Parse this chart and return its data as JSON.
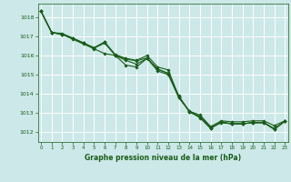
{
  "xlabel": "Graphe pression niveau de la mer (hPa)",
  "bg_color": "#cce8e8",
  "grid_color": "#ffffff",
  "line_color": "#1a5c1a",
  "marker": "D",
  "markersize": 1.8,
  "linewidth": 0.8,
  "ylim": [
    1011.5,
    1018.7
  ],
  "xlim": [
    -0.3,
    23.3
  ],
  "yticks": [
    1012,
    1013,
    1014,
    1015,
    1016,
    1017,
    1018
  ],
  "xticks": [
    0,
    1,
    2,
    3,
    4,
    5,
    6,
    7,
    8,
    9,
    10,
    11,
    12,
    13,
    14,
    15,
    16,
    17,
    18,
    19,
    20,
    21,
    22,
    23
  ],
  "series": [
    [
      1018.3,
      1017.2,
      1017.15,
      1016.9,
      1016.65,
      1016.4,
      1016.7,
      1016.05,
      1015.85,
      1015.75,
      1016.0,
      1015.4,
      1015.25,
      1013.85,
      1013.1,
      1012.9,
      1012.3,
      1012.6,
      1012.55,
      1012.55,
      1012.6,
      1012.6,
      1012.35,
      1012.6
    ],
    [
      1018.3,
      1017.2,
      1017.1,
      1016.85,
      1016.6,
      1016.35,
      1016.1,
      1016.0,
      1015.75,
      1015.55,
      1015.85,
      1015.3,
      1015.05,
      1013.9,
      1013.05,
      1012.8,
      1012.25,
      1012.5,
      1012.45,
      1012.45,
      1012.5,
      1012.5,
      1012.2,
      1012.58
    ],
    [
      1018.3,
      1017.2,
      1017.1,
      1016.9,
      1016.65,
      1016.4,
      1016.7,
      1016.0,
      1015.5,
      1015.4,
      1015.85,
      1015.2,
      1015.0,
      1013.8,
      1013.1,
      1012.75,
      1012.2,
      1012.55,
      1012.45,
      1012.45,
      1012.5,
      1012.5,
      1012.15,
      1012.58
    ],
    [
      1018.3,
      1017.2,
      1017.1,
      1016.9,
      1016.65,
      1016.38,
      1016.65,
      1016.02,
      1015.82,
      1015.72,
      1015.88,
      1015.28,
      1015.08,
      1013.82,
      1013.08,
      1012.82,
      1012.22,
      1012.52,
      1012.44,
      1012.44,
      1012.52,
      1012.52,
      1012.18,
      1012.58
    ]
  ]
}
